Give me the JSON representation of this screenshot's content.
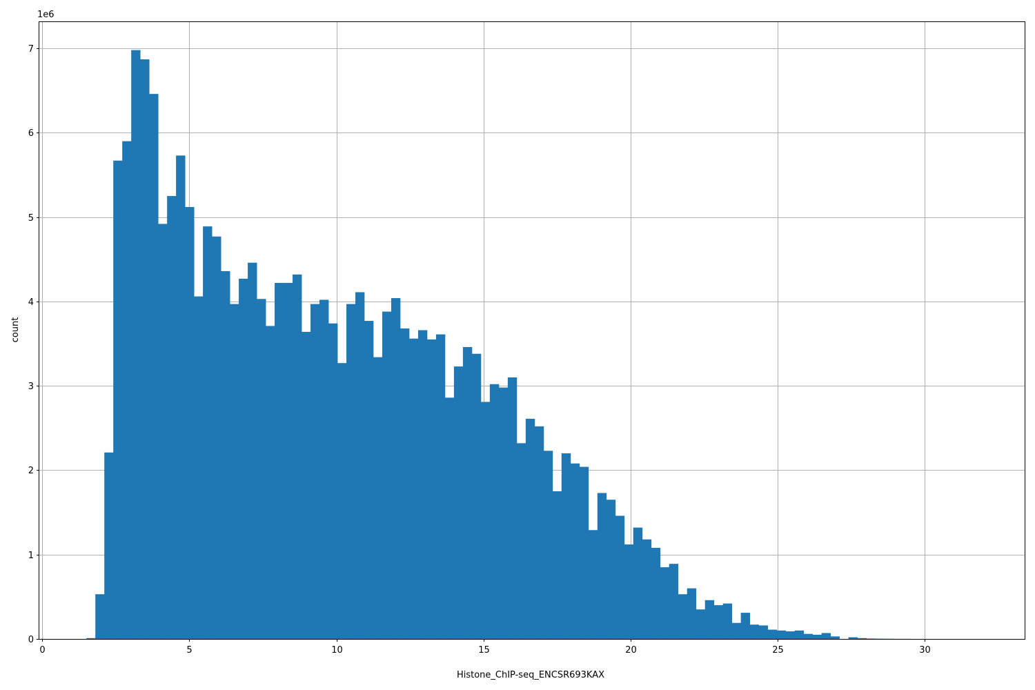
{
  "chart_data": {
    "type": "bar",
    "subtype": "histogram",
    "xlabel": "Histone_ChIP-seq_ENCSR693KAX",
    "ylabel": "count",
    "y_offset_label": "1e6",
    "xlim": [
      -0.1,
      33.4
    ],
    "ylim": [
      0,
      7.32
    ],
    "y_unit_multiplier": 1000000,
    "x_ticks": [
      0,
      5,
      10,
      15,
      20,
      25,
      30
    ],
    "y_ticks": [
      0,
      1,
      2,
      3,
      4,
      5,
      6,
      7
    ],
    "grid": true,
    "color": "#1f77b4",
    "bin_start": 1.5,
    "bin_width": 0.3048,
    "values": [
      0.01,
      0.53,
      2.21,
      5.67,
      5.9,
      6.98,
      6.87,
      6.46,
      4.92,
      5.25,
      5.73,
      5.12,
      4.06,
      4.89,
      4.77,
      4.36,
      3.97,
      4.27,
      4.46,
      4.03,
      3.71,
      4.22,
      4.22,
      4.32,
      3.64,
      3.97,
      4.02,
      3.74,
      3.27,
      3.97,
      4.11,
      3.77,
      3.34,
      3.88,
      4.04,
      3.68,
      3.56,
      3.66,
      3.55,
      3.61,
      2.86,
      3.23,
      3.46,
      3.38,
      2.81,
      3.02,
      2.98,
      3.1,
      2.32,
      2.61,
      2.52,
      2.23,
      1.75,
      2.2,
      2.08,
      2.04,
      1.29,
      1.73,
      1.65,
      1.46,
      1.12,
      1.32,
      1.18,
      1.08,
      0.85,
      0.89,
      0.53,
      0.6,
      0.35,
      0.46,
      0.4,
      0.42,
      0.19,
      0.31,
      0.17,
      0.16,
      0.11,
      0.1,
      0.09,
      0.1,
      0.06,
      0.05,
      0.07,
      0.03,
      0.0,
      0.02,
      0.01,
      0.005,
      0.003,
      0.002,
      0.001,
      0.001,
      0.0,
      0.0,
      0.0,
      0.0,
      0.0,
      0.0,
      0.0,
      0.0
    ]
  }
}
